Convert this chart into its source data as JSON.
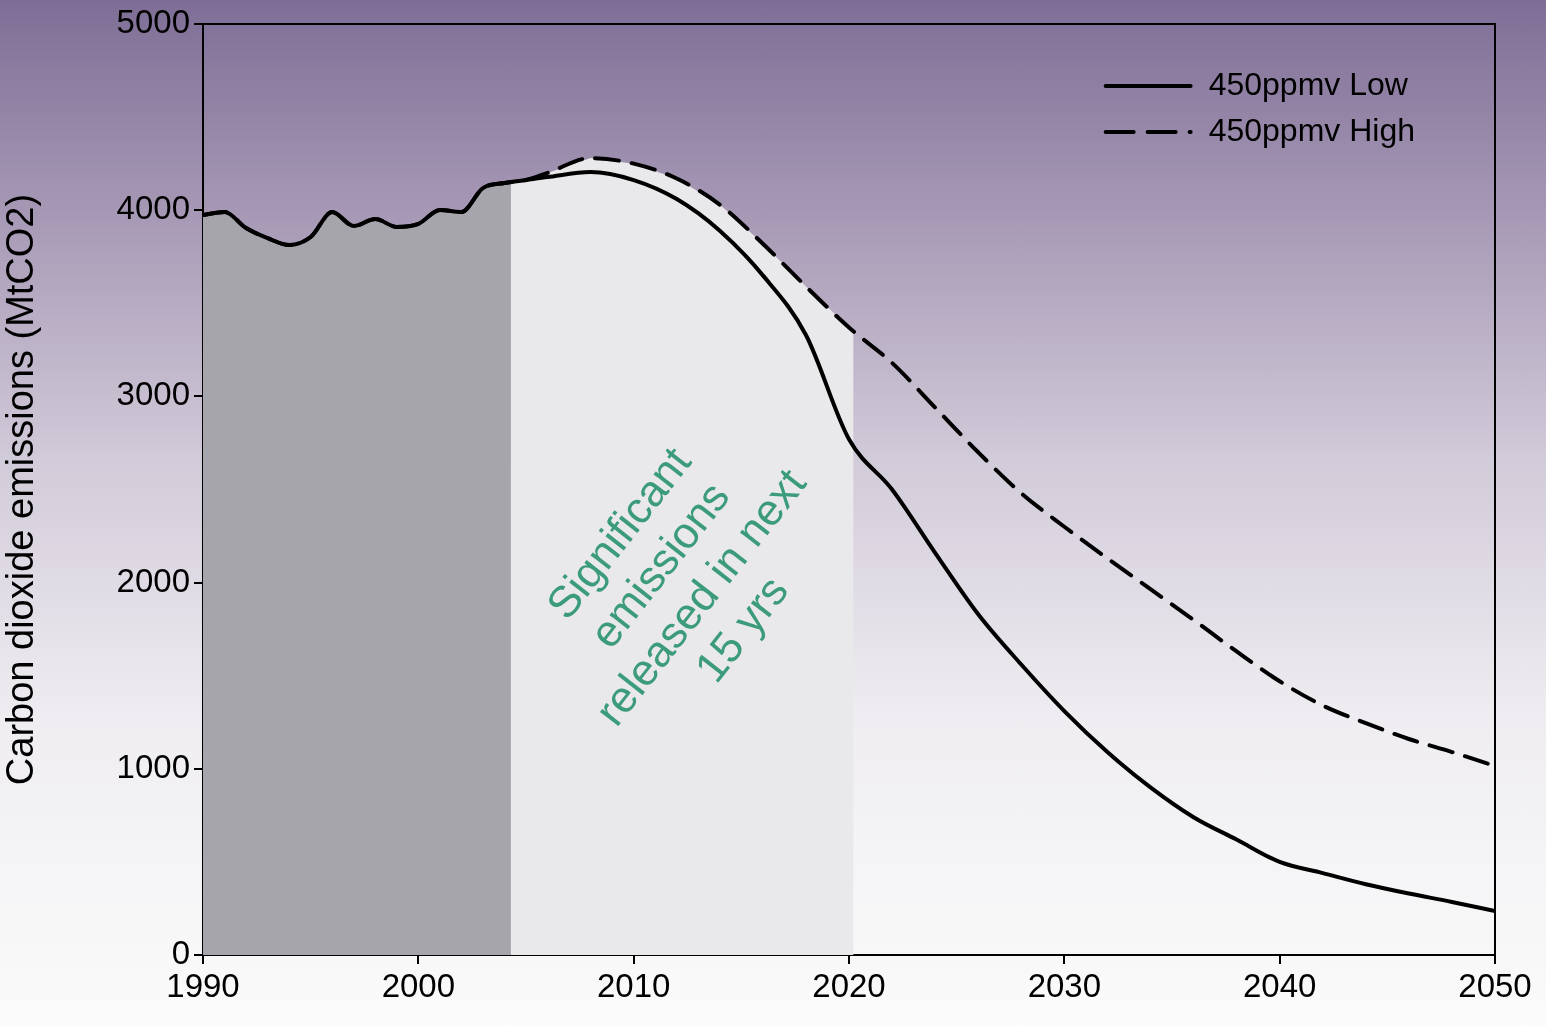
{
  "chart_data": {
    "type": "line",
    "ylabel": "Carbon dioxide emissions (MtCO2)",
    "x": [
      1990,
      1991,
      1992,
      1993,
      1994,
      1995,
      1996,
      1997,
      1998,
      1999,
      2000,
      2001,
      2002,
      2003,
      2004,
      2005,
      2006,
      2008,
      2010,
      2012,
      2014,
      2016,
      2018,
      2020,
      2022,
      2024,
      2026,
      2028,
      2030,
      2032,
      2034,
      2036,
      2038,
      2040,
      2042,
      2044,
      2046,
      2048,
      2050
    ],
    "series": [
      {
        "name": "450ppmv Low",
        "color": "#000000",
        "line_style": "solid",
        "values": [
          3974,
          3990,
          3904,
          3850,
          3813,
          3856,
          3990,
          3915,
          3953,
          3910,
          3926,
          4001,
          3990,
          4119,
          4146,
          4162,
          4178,
          4205,
          4162,
          4060,
          3890,
          3650,
          3330,
          2770,
          2500,
          2160,
          1830,
          1560,
          1310,
          1090,
          900,
          740,
          620,
          500,
          440,
          380,
          330,
          285,
          236
        ]
      },
      {
        "name": "450ppmv High",
        "color": "#000000",
        "line_style": "dashed",
        "values": [
          3974,
          3990,
          3904,
          3850,
          3813,
          3856,
          3990,
          3915,
          3953,
          3910,
          3926,
          4001,
          3990,
          4119,
          4146,
          4162,
          4200,
          4280,
          4250,
          4170,
          4030,
          3820,
          3590,
          3370,
          3180,
          2940,
          2700,
          2480,
          2300,
          2130,
          1965,
          1800,
          1630,
          1470,
          1340,
          1245,
          1160,
          1090,
          1015
        ]
      }
    ],
    "xlim": [
      1990,
      2050
    ],
    "xticks": [
      1990,
      2000,
      2010,
      2020,
      2030,
      2040,
      2050
    ],
    "ylim": [
      0,
      5000
    ],
    "yticks": [
      0,
      1000,
      2000,
      3000,
      4000,
      5000
    ],
    "bands": [
      {
        "axis": "x",
        "from": 1990,
        "to": 2004.3,
        "color": "#a6a5ab"
      },
      {
        "axis": "x",
        "from": 2004.3,
        "to": 2020.2,
        "color": "#e9e9ec",
        "label": "Significant emissions released in next 15 yrs"
      }
    ],
    "grid": false,
    "legend": "top right",
    "marker": "none"
  }
}
